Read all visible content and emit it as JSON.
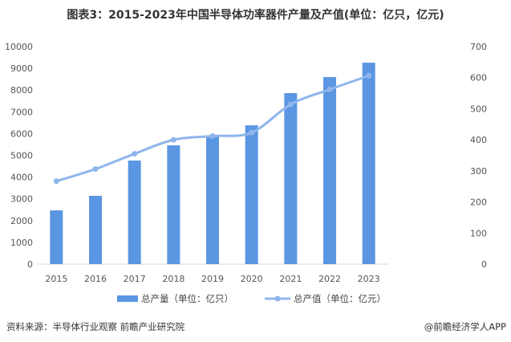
{
  "title": "图表3：2015-2023年中国半导体功率器件产量及产值(单位：亿只，亿元)",
  "source": "资料来源：半导体行业观察 前瞻产业研究院",
  "credit": "@前瞻经济学人APP",
  "watermark": "前瞻产业研究院",
  "colors": {
    "bar": "#5B96E2",
    "line": "#8FB6EC"
  },
  "chart_data": {
    "type": "bar+line",
    "categories": [
      "2015",
      "2016",
      "2017",
      "2018",
      "2019",
      "2020",
      "2021",
      "2022",
      "2023"
    ],
    "series": [
      {
        "name": "总产量（单位：亿只）",
        "type": "bar",
        "axis": "left",
        "values": [
          2470,
          3140,
          4760,
          5460,
          5900,
          6380,
          7860,
          8600,
          9260
        ]
      },
      {
        "name": "总产值（单位：亿元）",
        "type": "line",
        "axis": "right",
        "values": [
          267,
          306,
          355,
          400,
          412,
          423,
          514,
          562,
          606
        ]
      }
    ],
    "y_left": {
      "range": [
        0,
        10000
      ],
      "ticks": [
        "0",
        "1000",
        "2000",
        "3000",
        "4000",
        "5000",
        "6000",
        "7000",
        "8000",
        "9000",
        "10000"
      ]
    },
    "y_right": {
      "range": [
        0,
        700
      ],
      "ticks": [
        "0",
        "100",
        "200",
        "300",
        "400",
        "500",
        "600",
        "700"
      ]
    },
    "grid": false,
    "legend": "bottom"
  }
}
